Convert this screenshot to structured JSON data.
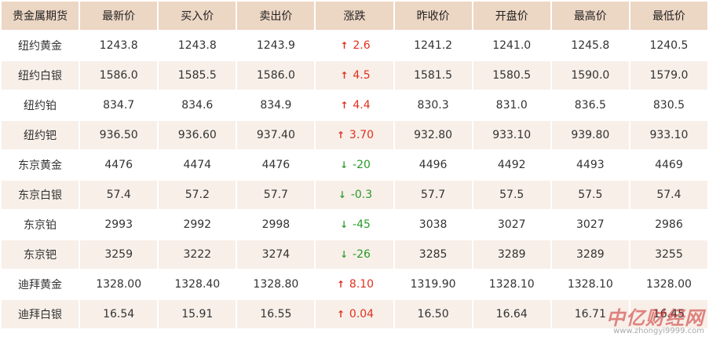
{
  "headers": [
    "贵金属期货",
    "最新价",
    "买入价",
    "卖出价",
    "涨跌",
    "昨收价",
    "开盘价",
    "最高价",
    "最低价"
  ],
  "rows": [
    {
      "name": "纽约黄金",
      "last": "1243.8",
      "bid": "1243.8",
      "ask": "1243.9",
      "dir": "up",
      "change": "2.6",
      "prev": "1241.2",
      "open": "1241.0",
      "high": "1245.8",
      "low": "1240.5"
    },
    {
      "name": "纽约白银",
      "last": "1586.0",
      "bid": "1585.5",
      "ask": "1586.0",
      "dir": "up",
      "change": "4.5",
      "prev": "1581.5",
      "open": "1580.5",
      "high": "1590.0",
      "low": "1579.0"
    },
    {
      "name": "纽约铂",
      "last": "834.7",
      "bid": "834.6",
      "ask": "834.9",
      "dir": "up",
      "change": "4.4",
      "prev": "830.3",
      "open": "831.0",
      "high": "836.5",
      "low": "830.5"
    },
    {
      "name": "纽约钯",
      "last": "936.50",
      "bid": "936.60",
      "ask": "937.40",
      "dir": "up",
      "change": "3.70",
      "prev": "932.80",
      "open": "933.10",
      "high": "939.80",
      "low": "933.10"
    },
    {
      "name": "东京黄金",
      "last": "4476",
      "bid": "4474",
      "ask": "4476",
      "dir": "down",
      "change": "-20",
      "prev": "4496",
      "open": "4492",
      "high": "4493",
      "low": "4469"
    },
    {
      "name": "东京白银",
      "last": "57.4",
      "bid": "57.2",
      "ask": "57.7",
      "dir": "down",
      "change": "-0.3",
      "prev": "57.7",
      "open": "57.5",
      "high": "57.5",
      "low": "57.4"
    },
    {
      "name": "东京铂",
      "last": "2993",
      "bid": "2992",
      "ask": "2998",
      "dir": "down",
      "change": "-45",
      "prev": "3038",
      "open": "3027",
      "high": "3027",
      "low": "2986"
    },
    {
      "name": "东京钯",
      "last": "3259",
      "bid": "3222",
      "ask": "3274",
      "dir": "down",
      "change": "-26",
      "prev": "3285",
      "open": "3289",
      "high": "3289",
      "low": "3255"
    },
    {
      "name": "迪拜黄金",
      "last": "1328.00",
      "bid": "1328.40",
      "ask": "1328.80",
      "dir": "up",
      "change": "8.10",
      "prev": "1319.90",
      "open": "1328.10",
      "high": "1328.10",
      "low": "1328.00"
    },
    {
      "name": "迪拜白银",
      "last": "16.54",
      "bid": "15.91",
      "ask": "16.55",
      "dir": "up",
      "change": "0.04",
      "prev": "16.50",
      "open": "16.64",
      "high": "16.71",
      "low": "16.45"
    }
  ],
  "watermark": {
    "logo": "中亿财经网",
    "url": "www.zhongyi9999.com"
  },
  "colors": {
    "header_bg": "#ecd6c4",
    "row_alt_bg": "#f7efe8",
    "up": "#e03020",
    "down": "#2a9a2a"
  },
  "icons": {
    "up": "arrow-up-icon",
    "down": "arrow-down-icon"
  }
}
